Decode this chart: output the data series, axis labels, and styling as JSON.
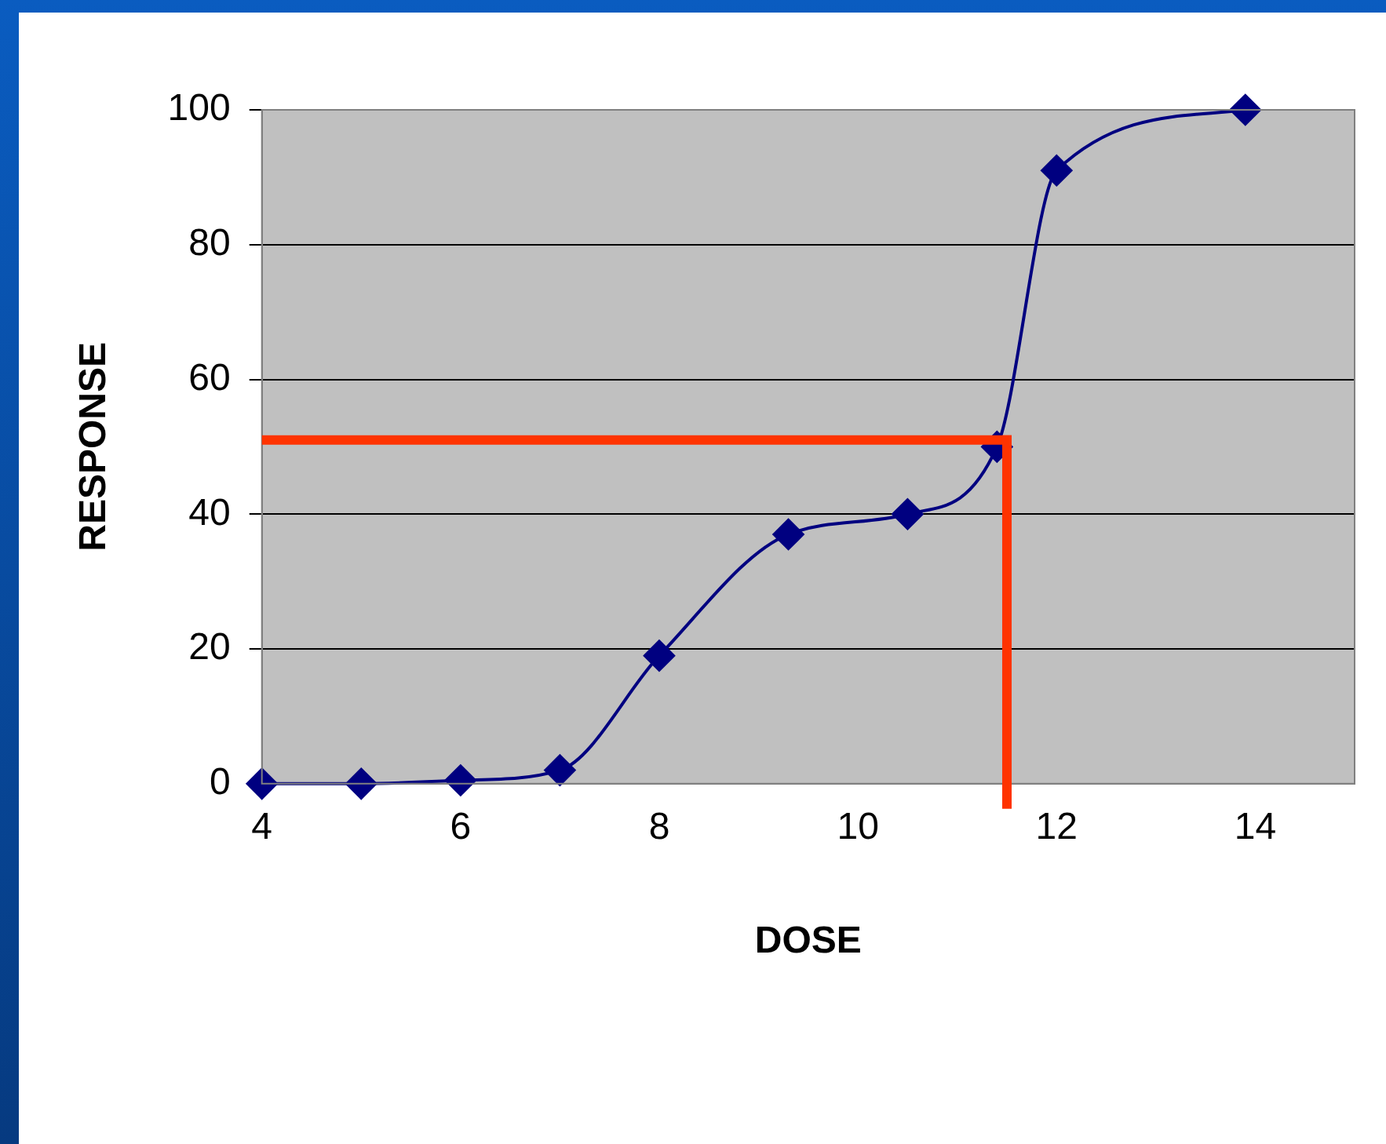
{
  "chart_data": {
    "type": "line",
    "xlabel": "DOSE",
    "ylabel": "RESPONSE",
    "x": [
      4,
      5,
      6,
      7,
      8,
      9.3,
      10.5,
      11.4,
      12,
      13.9
    ],
    "series": [
      {
        "color": "#000080",
        "values": [
          0,
          0,
          0.5,
          2,
          19,
          37,
          40,
          50,
          91,
          100
        ]
      }
    ],
    "xlim": [
      4,
      15
    ],
    "xticks": [
      4,
      6,
      8,
      10,
      12,
      14
    ],
    "ylim": [
      0,
      100
    ],
    "yticks": [
      0,
      20,
      40,
      60,
      80,
      100
    ],
    "grid": "y",
    "legend": false,
    "marker": "diamond",
    "line_style": "solid",
    "ref_lines": [
      {
        "axis": "y",
        "value": 51,
        "color": "#ff3300"
      },
      {
        "axis": "x",
        "value": 11.5,
        "color": "#ff3300"
      }
    ]
  }
}
